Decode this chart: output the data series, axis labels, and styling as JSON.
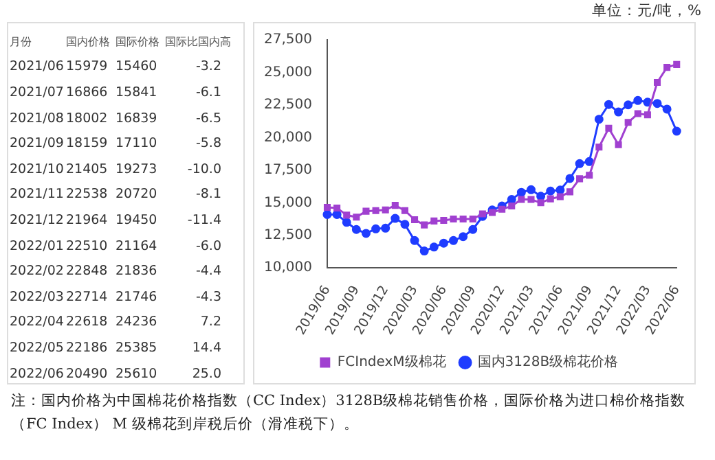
{
  "chart_data": [
    {
      "type": "other",
      "xlabel": "月份",
      "data_labels": true,
      "categories": [
        "2021/06",
        "2021/07",
        "2021/08",
        "2021/09",
        "2021/10",
        "2021/11",
        "2021/12",
        "2022/01",
        "2022/02",
        "2022/03",
        "2022/04",
        "2022/05",
        "2022/06"
      ],
      "series": [
        {
          "name": "国内价格",
          "values": [
            15979,
            16866,
            18002,
            18159,
            21405,
            22538,
            21964,
            22510,
            22848,
            22714,
            22618,
            22186,
            20490
          ]
        },
        {
          "name": "国际价格",
          "values": [
            15460,
            15841,
            16839,
            17110,
            19273,
            20720,
            19450,
            21164,
            21836,
            21746,
            24236,
            25385,
            25610
          ]
        },
        {
          "name": "国际比国内高",
          "values": [
            -3.2,
            -6.1,
            -6.5,
            -5.8,
            -10.0,
            -8.1,
            -11.4,
            -6.0,
            -4.4,
            -4.3,
            7.2,
            14.4,
            25.0
          ],
          "value_labels": [
            "-3.2",
            "-6.1",
            "-6.5",
            "-5.8",
            "-10.0",
            "-8.1",
            "-11.4",
            "-6.0",
            "-4.4",
            "-4.3",
            "7.2",
            "14.4",
            "25.0"
          ]
        }
      ]
    },
    {
      "type": "line",
      "categories": [
        "2019/06",
        null,
        null,
        "2019/09",
        null,
        null,
        "2019/12",
        null,
        null,
        "2020/03",
        null,
        null,
        "2020/06",
        null,
        null,
        "2020/09",
        null,
        null,
        "2020/12",
        null,
        null,
        "2021/03",
        null,
        null,
        "2021/06",
        null,
        null,
        "2021/09",
        null,
        null,
        "2021/12",
        null,
        null,
        "2022/03",
        null,
        null,
        "2022/06"
      ],
      "series": [
        {
          "name": "国内3128B级棉花价格",
          "color": "#1f3cff",
          "marker": "circle",
          "values": [
            14100,
            14100,
            13500,
            12950,
            12650,
            13000,
            13050,
            13800,
            13350,
            12100,
            11300,
            11600,
            11900,
            12100,
            12400,
            12950,
            13950,
            14450,
            14750,
            15250,
            15800,
            16000,
            15500,
            15900,
            15979,
            16866,
            18002,
            18159,
            21405,
            22538,
            21964,
            22510,
            22848,
            22714,
            22618,
            22186,
            20490
          ]
        },
        {
          "name": "FCIndexM级棉花",
          "color": "#a040d0",
          "marker": "square",
          "values": [
            14650,
            14600,
            14050,
            13900,
            14350,
            14400,
            14450,
            14800,
            14400,
            13700,
            13300,
            13600,
            13650,
            13750,
            13750,
            13750,
            14150,
            14250,
            14500,
            14750,
            15250,
            15250,
            15000,
            15300,
            15460,
            15841,
            16839,
            17110,
            19273,
            20720,
            19450,
            21164,
            21836,
            21746,
            24236,
            25385,
            25610
          ]
        }
      ],
      "ylim": [
        10000,
        27500
      ],
      "yticks": [
        {
          "value": 10000,
          "label": "10,000"
        },
        {
          "value": 12500,
          "label": "12,500"
        },
        {
          "value": 15000,
          "label": "15,000"
        },
        {
          "value": 17500,
          "label": "17,500"
        },
        {
          "value": 20000,
          "label": "20,000"
        },
        {
          "value": 22500,
          "label": "22,500"
        },
        {
          "value": 25000,
          "label": "25,000"
        },
        {
          "value": 27500,
          "label": "27,500"
        }
      ],
      "grid": false,
      "legend": "bottom",
      "annotations": [
        "单位：元/吨，%",
        "注：国内价格为中国棉花价格指数（CC Index）3128B级棉花销售价格，国际价格为进口棉价格指数（FC Index） M 级棉花到岸税后价（滑准税下）。"
      ]
    }
  ]
}
